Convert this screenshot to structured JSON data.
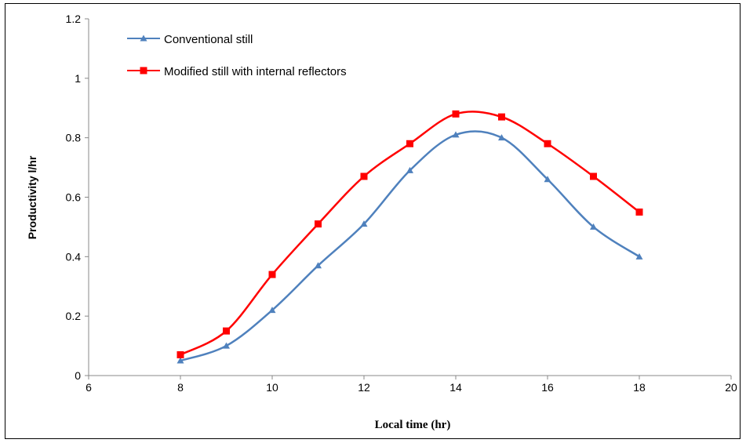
{
  "chart_data": {
    "type": "line",
    "title": "",
    "xlabel": "Local time (hr)",
    "ylabel": "Productivity l/hr",
    "xlim": [
      6,
      20
    ],
    "ylim": [
      0,
      1.2
    ],
    "xticks": [
      6,
      8,
      10,
      12,
      14,
      16,
      18,
      20
    ],
    "yticks": [
      0,
      0.2,
      0.4,
      0.6,
      0.8,
      1,
      1.2
    ],
    "xtick_labels": [
      "6",
      "8",
      "10",
      "12",
      "14",
      "16",
      "18",
      "20"
    ],
    "ytick_labels": [
      "0",
      "0.2",
      "0.4",
      "0.6",
      "0.8",
      "1",
      "1.2"
    ],
    "grid": false,
    "smooth": true,
    "legend_position": "top-left",
    "x": [
      8,
      9,
      10,
      11,
      12,
      13,
      14,
      15,
      16,
      17,
      18
    ],
    "series": [
      {
        "name": "Conventional still",
        "color": "#4f81bd",
        "marker": "triangle",
        "values": [
          0.05,
          0.1,
          0.22,
          0.37,
          0.51,
          0.69,
          0.81,
          0.8,
          0.66,
          0.5,
          0.4
        ]
      },
      {
        "name": "Modified still with internal reflectors",
        "color": "#ff0000",
        "marker": "square",
        "values": [
          0.07,
          0.15,
          0.34,
          0.51,
          0.67,
          0.78,
          0.88,
          0.87,
          0.78,
          0.67,
          0.55
        ]
      }
    ]
  }
}
